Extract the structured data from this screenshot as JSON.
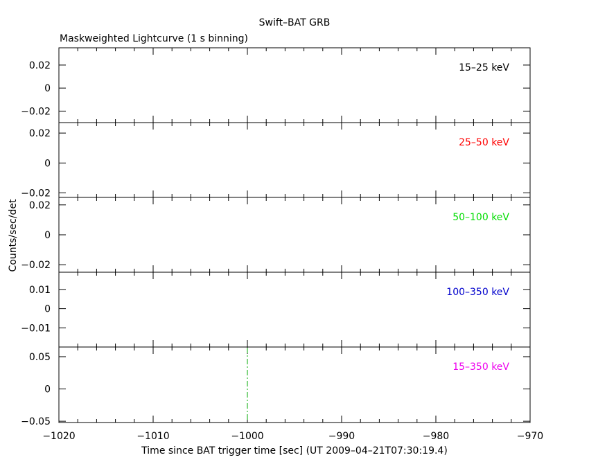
{
  "figure": {
    "title": "Swift–BAT GRB",
    "subtitle": "Maskweighted Lightcurve (1 s binning)",
    "xlabel": "Time since BAT trigger time [sec] (UT 2009–04–21T07:30:19.4)",
    "ylabel": "Counts/sec/det",
    "x_tick_labels": [
      "−1020",
      "−1010",
      "−1000",
      "−990",
      "−980",
      "−970"
    ]
  },
  "chart_data": [
    {
      "type": "line",
      "band": "15–25 keV",
      "band_color": "#000000",
      "xlim": [
        -1020,
        -970
      ],
      "ylim": [
        -0.03,
        0.035
      ],
      "y_ticks": [
        {
          "value": 0.02,
          "label": "0.02"
        },
        {
          "value": 0,
          "label": "0"
        },
        {
          "value": -0.02,
          "label": "−0.02"
        }
      ],
      "x": [],
      "y": []
    },
    {
      "type": "line",
      "band": "25–50 keV",
      "band_color": "#ff0000",
      "xlim": [
        -1020,
        -970
      ],
      "ylim": [
        -0.023,
        0.027
      ],
      "y_ticks": [
        {
          "value": 0.02,
          "label": "0.02"
        },
        {
          "value": 0,
          "label": "0"
        },
        {
          "value": -0.02,
          "label": "−0.02"
        }
      ],
      "x": [],
      "y": []
    },
    {
      "type": "line",
      "band": "50–100 keV",
      "band_color": "#00dd00",
      "xlim": [
        -1020,
        -970
      ],
      "ylim": [
        -0.025,
        0.025
      ],
      "y_ticks": [
        {
          "value": 0.02,
          "label": "0.02"
        },
        {
          "value": 0,
          "label": "0"
        },
        {
          "value": -0.02,
          "label": "−0.02"
        }
      ],
      "x": [],
      "y": []
    },
    {
      "type": "line",
      "band": "100–350 keV",
      "band_color": "#0000cc",
      "xlim": [
        -1020,
        -970
      ],
      "ylim": [
        -0.02,
        0.019
      ],
      "y_ticks": [
        {
          "value": 0.01,
          "label": "0.01"
        },
        {
          "value": 0,
          "label": "0"
        },
        {
          "value": -0.01,
          "label": "−0.01"
        }
      ],
      "x": [],
      "y": []
    },
    {
      "type": "line",
      "band": "15–350 keV",
      "band_color": "#ee00ee",
      "xlim": [
        -1020,
        -970
      ],
      "ylim": [
        -0.052,
        0.065
      ],
      "y_ticks": [
        {
          "value": 0.05,
          "label": "0.05"
        },
        {
          "value": 0,
          "label": "0"
        },
        {
          "value": -0.05,
          "label": "−0.05"
        }
      ],
      "x": [],
      "y": [],
      "marker_line": {
        "x": -1000,
        "color": "#00aa00",
        "style": "dash-dot"
      }
    }
  ]
}
